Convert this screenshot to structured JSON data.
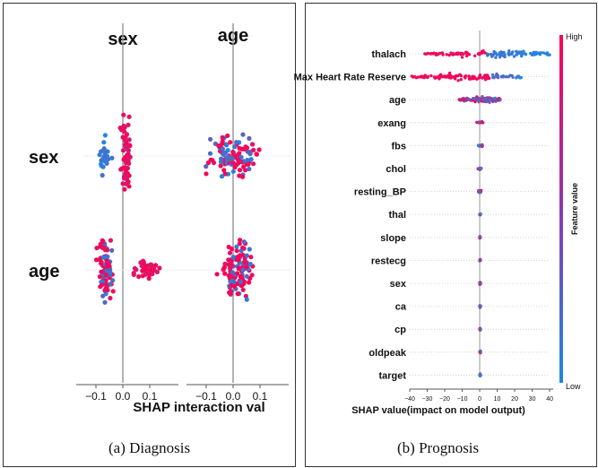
{
  "panels": {
    "a": {
      "caption": "(a) Diagnosis"
    },
    "b": {
      "caption": "(b) Prognosis"
    }
  },
  "chart_data": [
    {
      "type": "scatter",
      "subtype": "shap_interaction_beeswarm",
      "columns": [
        "sex",
        "age"
      ],
      "rows": [
        "sex",
        "age"
      ],
      "xlabel": "SHAP interaction val",
      "xticks": [
        -0.1,
        0.0,
        0.1
      ],
      "xtick_labels": [
        "−0.1",
        "0.0",
        "0.1"
      ],
      "xlim": [
        -0.2,
        0.2
      ],
      "cells": [
        {
          "row": "sex",
          "col": "sex",
          "groups": [
            {
              "center": -0.07,
              "spread": 0.035,
              "count": 24,
              "color": "blue",
              "height": 0.5
            },
            {
              "center": 0.01,
              "spread": 0.03,
              "count": 60,
              "color": "red",
              "height": 1.0
            }
          ]
        },
        {
          "row": "sex",
          "col": "age",
          "groups": [
            {
              "center": 0.0,
              "spread": 0.14,
              "count": 110,
              "color": "mix",
              "height": 0.6
            }
          ]
        },
        {
          "row": "age",
          "col": "sex",
          "groups": [
            {
              "center": -0.065,
              "spread": 0.045,
              "count": 90,
              "color": "mix",
              "height": 1.0
            },
            {
              "center": 0.09,
              "spread": 0.07,
              "count": 40,
              "color": "red",
              "height": 0.25
            }
          ]
        },
        {
          "row": "age",
          "col": "age",
          "groups": [
            {
              "center": 0.02,
              "spread": 0.1,
              "count": 110,
              "color": "mix",
              "height": 0.9
            }
          ]
        }
      ]
    },
    {
      "type": "scatter",
      "subtype": "shap_summary_beeswarm",
      "features": [
        "thalach",
        "Max Heart Rate Reserve",
        "age",
        "exang",
        "fbs",
        "chol",
        "resting_BP",
        "thal",
        "slope",
        "restecg",
        "sex",
        "ca",
        "cp",
        "oldpeak",
        "target"
      ],
      "feature_ranges": [
        [
          -32,
          40
        ],
        [
          -40,
          25
        ],
        [
          -12,
          12
        ],
        [
          -2,
          3
        ],
        [
          -1,
          2
        ],
        [
          -1,
          1
        ],
        [
          -1,
          1
        ],
        [
          0,
          0.5
        ],
        [
          0,
          0.5
        ],
        [
          0,
          0.5
        ],
        [
          0,
          0.5
        ],
        [
          0,
          0.5
        ],
        [
          0,
          0.5
        ],
        [
          0,
          0.5
        ],
        [
          0,
          0.5
        ]
      ],
      "xlabel": "SHAP value(impact on model output)",
      "xticks": [
        -40,
        -30,
        -20,
        -10,
        0,
        10,
        20,
        30,
        40
      ],
      "xlim": [
        -40,
        42
      ],
      "colorbar": {
        "label": "Feature value",
        "high": "High",
        "low": "Low",
        "high_color": "#ff0052",
        "low_color": "#1e88e5"
      }
    }
  ]
}
